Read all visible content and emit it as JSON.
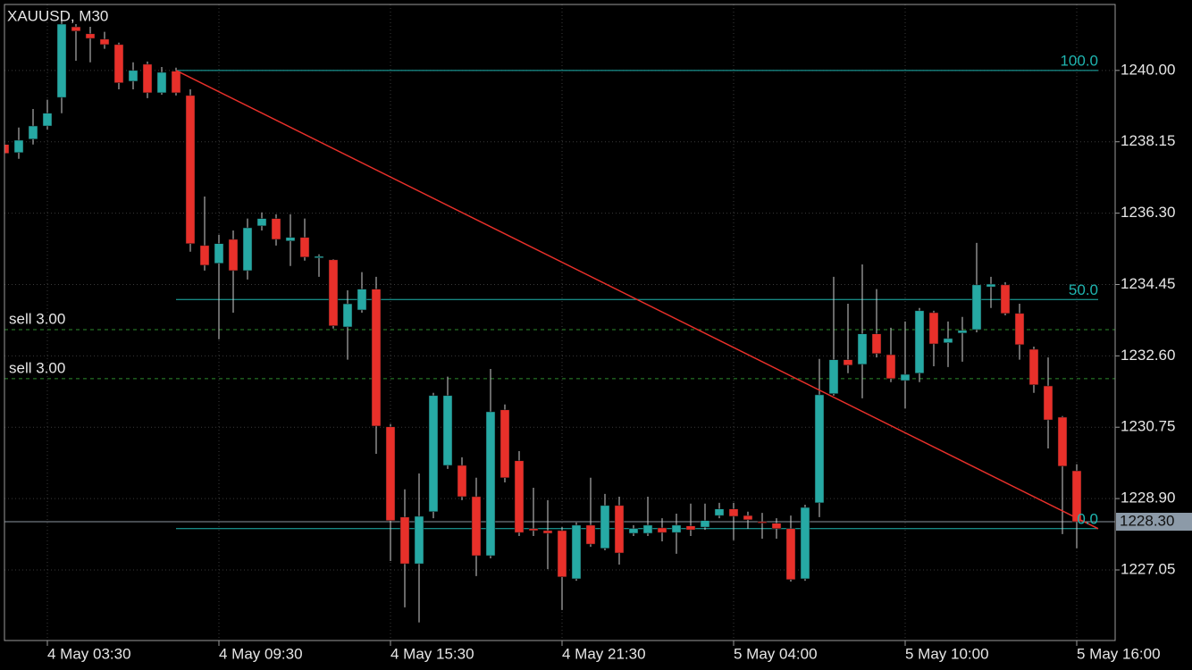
{
  "chart_data": {
    "type": "candlestick",
    "title": "XAUUSD, M30",
    "categories": [
      null,
      null,
      null,
      "4 May 03:30",
      null,
      null,
      null,
      null,
      null,
      null,
      null,
      null,
      null,
      null,
      null,
      "4 May 09:30",
      null,
      null,
      null,
      null,
      null,
      null,
      null,
      null,
      null,
      null,
      null,
      "4 May 15:30",
      null,
      null,
      null,
      null,
      null,
      null,
      null,
      null,
      null,
      null,
      null,
      "4 May 21:30",
      null,
      null,
      null,
      null,
      null,
      null,
      null,
      null,
      null,
      null,
      null,
      "5 May 04:00",
      null,
      null,
      null,
      null,
      null,
      null,
      null,
      null,
      null,
      null,
      null,
      "5 May 10:00",
      null,
      null,
      null,
      null,
      null,
      null,
      null,
      null,
      null,
      null,
      null,
      "5 May 16:00"
    ],
    "open": [
      1238.08,
      1237.87,
      1238.22,
      1238.56,
      1239.3,
      1241.13,
      1240.95,
      1240.81,
      1240.67,
      1239.72,
      1240.16,
      1239.42,
      1239.98,
      1239.35,
      1235.46,
      1235.0,
      1235.62,
      1234.81,
      1235.97,
      1236.16,
      1235.58,
      1235.67,
      1235.14,
      1235.09,
      1233.35,
      1233.79,
      1234.33,
      1230.76,
      1228.42,
      1227.21,
      1228.56,
      1229.76,
      1229.76,
      1228.95,
      1227.42,
      1231.2,
      1229.88,
      1228.12,
      1228.07,
      1228.07,
      1226.82,
      1228.21,
      1227.61,
      1228.72,
      1228.0,
      1228.0,
      1228.14,
      1228.02,
      1228.19,
      1228.16,
      1228.46,
      1228.63,
      1228.46,
      1228.3,
      1228.26,
      1228.12,
      1226.82,
      1228.79,
      1231.62,
      1232.5,
      1232.38,
      1233.17,
      1232.63,
      1231.96,
      1232.15,
      1233.72,
      1232.94,
      1233.19,
      1233.28,
      1234.39,
      1234.44,
      1233.7,
      1232.77,
      1231.82,
      1231.01,
      1229.62
    ],
    "high": [
      1238.19,
      1238.52,
      1239.0,
      1239.24,
      1241.37,
      1241.2,
      1241.13,
      1241.0,
      1240.72,
      1240.21,
      1240.23,
      1240.09,
      1240.07,
      1239.51,
      1236.73,
      1235.74,
      1235.85,
      1236.16,
      1236.32,
      1236.27,
      1236.27,
      1236.16,
      1235.23,
      1235.11,
      1234.3,
      1234.77,
      1234.65,
      1230.83,
      1229.14,
      1229.55,
      1231.64,
      1232.06,
      1229.97,
      1229.44,
      1232.26,
      1231.34,
      1230.13,
      1229.18,
      1228.86,
      1228.16,
      1228.28,
      1229.44,
      1229.02,
      1228.95,
      1228.21,
      1228.95,
      1228.39,
      1228.51,
      1228.77,
      1228.77,
      1228.79,
      1228.79,
      1228.56,
      1228.53,
      1228.39,
      1228.46,
      1228.74,
      1232.52,
      1234.65,
      1233.95,
      1234.97,
      1234.33,
      1233.33,
      1233.49,
      1233.84,
      1233.77,
      1233.49,
      1233.61,
      1235.53,
      1234.65,
      1234.51,
      1233.95,
      1232.84,
      1232.56,
      1231.04,
      1229.79
    ],
    "low": [
      1237.78,
      1237.71,
      1238.08,
      1238.47,
      1238.89,
      1240.25,
      1240.21,
      1240.56,
      1239.51,
      1239.51,
      1239.28,
      1239.37,
      1239.35,
      1235.3,
      1234.81,
      1233.03,
      1233.72,
      1234.58,
      1235.85,
      1235.46,
      1234.93,
      1235.07,
      1234.65,
      1233.31,
      1232.5,
      1233.72,
      1230.06,
      1227.28,
      1226.08,
      1225.69,
      1228.39,
      1229.67,
      1228.86,
      1226.89,
      1227.35,
      1229.32,
      1227.93,
      1227.93,
      1227.07,
      1226.01,
      1226.77,
      1227.65,
      1227.56,
      1227.19,
      1227.93,
      1227.93,
      1227.79,
      1227.47,
      1227.93,
      1228.09,
      1228.39,
      1227.82,
      1228.12,
      1227.86,
      1227.86,
      1226.75,
      1226.77,
      1228.42,
      1231.57,
      1232.15,
      1231.5,
      1232.56,
      1231.92,
      1231.24,
      1231.92,
      1232.33,
      1232.31,
      1232.45,
      1233.21,
      1233.84,
      1233.65,
      1232.5,
      1231.64,
      1230.2,
      1227.98,
      1227.61
    ],
    "close": [
      1237.85,
      1238.19,
      1238.56,
      1238.89,
      1241.2,
      1241.02,
      1240.83,
      1240.67,
      1239.68,
      1240.0,
      1239.42,
      1239.95,
      1239.42,
      1235.51,
      1234.95,
      1235.51,
      1234.81,
      1235.92,
      1236.16,
      1235.62,
      1235.67,
      1235.16,
      1235.18,
      1233.38,
      1233.95,
      1234.33,
      1230.78,
      1228.33,
      1227.21,
      1228.44,
      1231.57,
      1231.57,
      1228.95,
      1227.42,
      1231.15,
      1229.44,
      1228.02,
      1228.07,
      1228.0,
      1226.87,
      1228.21,
      1227.72,
      1228.72,
      1227.49,
      1228.12,
      1228.21,
      1228.02,
      1228.21,
      1228.09,
      1228.33,
      1228.63,
      1228.44,
      1228.35,
      1228.28,
      1228.12,
      1226.8,
      1228.67,
      1231.59,
      1232.5,
      1232.36,
      1233.17,
      1232.66,
      1232.01,
      1232.12,
      1233.77,
      1232.91,
      1233.05,
      1233.26,
      1234.44,
      1234.46,
      1233.7,
      1232.89,
      1231.85,
      1230.94,
      1229.74,
      1228.3
    ],
    "up_color": "#26a9a4",
    "down_color": "#e8302a",
    "ylim": [
      1225.22,
      1241.71
    ],
    "yticks": [
      {
        "value": 1227.05,
        "label": "1227.05"
      },
      {
        "value": 1228.9,
        "label": "1228.90"
      },
      {
        "value": 1230.75,
        "label": "1230.75"
      },
      {
        "value": 1232.6,
        "label": "1232.60"
      },
      {
        "value": 1234.45,
        "label": "1234.45"
      },
      {
        "value": 1236.3,
        "label": "1236.30"
      },
      {
        "value": 1238.15,
        "label": "1238.15"
      },
      {
        "value": 1240,
        "label": "1240.00"
      }
    ],
    "grid": true,
    "current_price": {
      "value": 1228.3,
      "label": "1228.30"
    },
    "orders": [
      {
        "name": "sell 3.00",
        "price": 1233.28,
        "color": "#2e8b2e"
      },
      {
        "name": "sell 3.00",
        "price": 1232.01,
        "color": "#2e8b2e"
      }
    ],
    "fibo": {
      "x": [
        12,
        76.5
      ],
      "line_color": "#e8302a",
      "level_color": "#1fb5b0",
      "levels": [
        {
          "name": "100.0",
          "price": 1240.0
        },
        {
          "name": "50.0",
          "price": 1234.06
        },
        {
          "name": "0.0",
          "price": 1228.12
        }
      ]
    }
  }
}
